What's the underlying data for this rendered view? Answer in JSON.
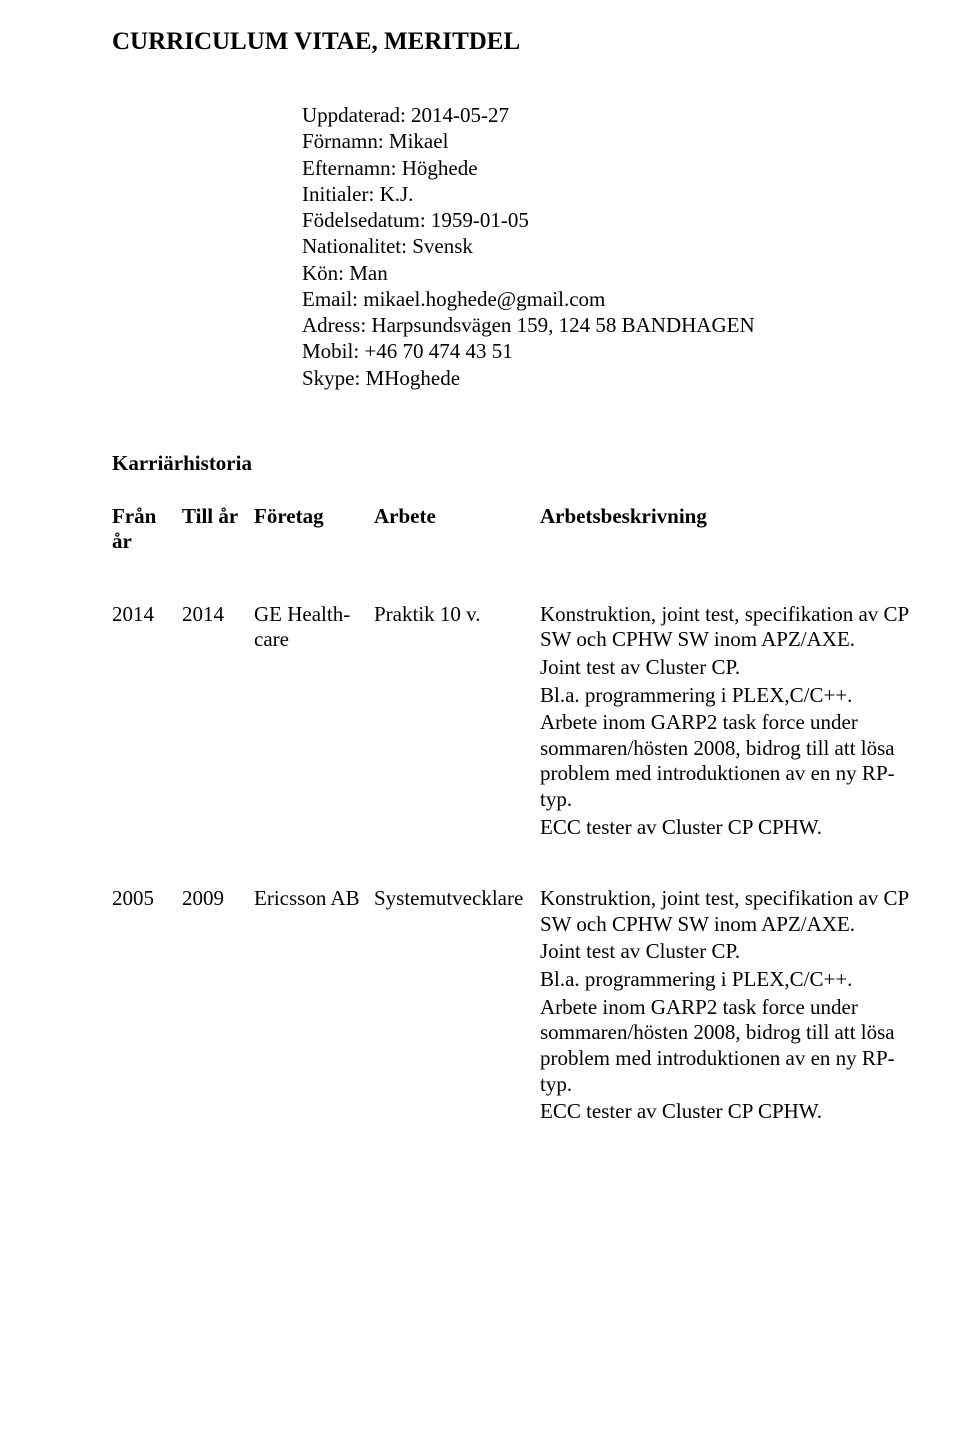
{
  "doc": {
    "title": "CURRICULUM VITAE, MERITDEL"
  },
  "personal": {
    "updated_label": "Uppdaterad: ",
    "updated_value": "2014-05-27",
    "firstname_label": "Förnamn: ",
    "firstname_value": "Mikael",
    "lastname_label": "Efternamn: ",
    "lastname_value": "Höghede",
    "initials_label": "Initialer: ",
    "initials_value": "K.J.",
    "birth_label": "Födelsedatum: ",
    "birth_value": "1959-01-05",
    "nationality_label": "Nationalitet: ",
    "nationality_value": "Svensk",
    "gender_label": "Kön: ",
    "gender_value": "Man",
    "email_label": "Email: ",
    "email_value": "mikael.hoghede@gmail.com",
    "address_label": "Adress: ",
    "address_value": "Harpsundsvägen 159, 124 58 BANDHAGEN",
    "mobile_label": "Mobil: ",
    "mobile_value": "+46 70 474 43 51",
    "skype_label": "Skype: ",
    "skype_value": "MHoghede"
  },
  "career": {
    "section_title": "Karriärhistoria",
    "headers": {
      "from": "Från år",
      "to": "Till år",
      "company": "Företag",
      "job": "Arbete",
      "desc": "Arbetsbeskrivning"
    },
    "rows": [
      {
        "from": "2014",
        "to": "2014",
        "company": "GE Health-care",
        "job": "Praktik 10 v.",
        "desc": [
          "Konstruktion, joint test, specifikation av CP SW och CPHW SW inom APZ/AXE.",
          "Joint test av Cluster CP.",
          "Bl.a. programmering i PLEX,C/C++.",
          "Arbete inom GARP2 task force under sommaren/hösten 2008, bidrog till att lösa problem med introduktionen av en ny RP-typ.",
          "ECC tester av Cluster CP CPHW."
        ]
      },
      {
        "from": "2005",
        "to": "2009",
        "company": "Ericsson AB",
        "job": "Systemutvecklare",
        "desc": [
          "Konstruktion, joint test, specifikation av CP SW och CPHW SW inom APZ/AXE.",
          "Joint test av Cluster CP.",
          "Bl.a. programmering i PLEX,C/C++.",
          "Arbete inom GARP2 task force under sommaren/hösten 2008, bidrog till att lösa problem med introduktionen av en ny RP-typ.",
          "ECC tester av Cluster CP CPHW."
        ]
      }
    ]
  }
}
